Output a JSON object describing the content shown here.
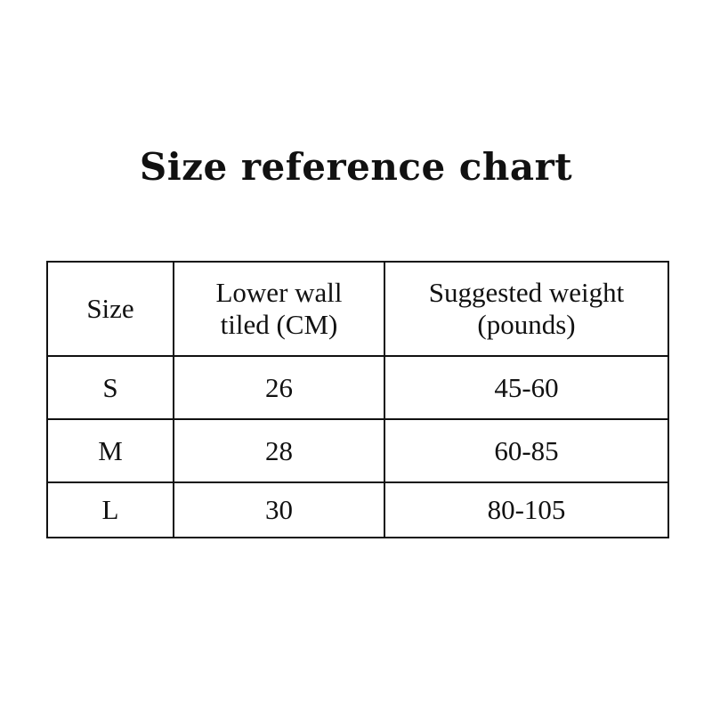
{
  "title": "Size reference chart",
  "table": {
    "headers": [
      [
        "Size"
      ],
      [
        "Lower wall",
        "tiled (CM)"
      ],
      [
        "Suggested weight",
        "(pounds)"
      ]
    ],
    "rows": [
      [
        "S",
        "26",
        "45-60"
      ],
      [
        "M",
        "28",
        "60-85"
      ],
      [
        "L",
        "30",
        "80-105"
      ]
    ]
  }
}
